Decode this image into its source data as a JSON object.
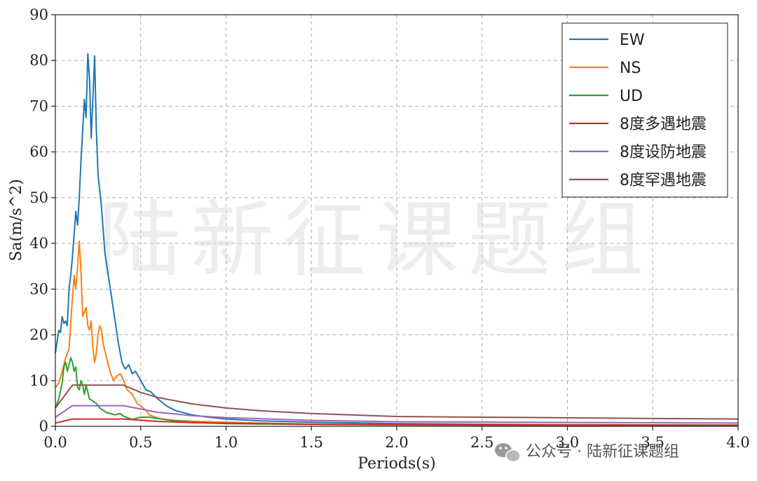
{
  "chart_data": {
    "type": "line",
    "title": "",
    "xlabel": "Periods(s)",
    "ylabel": "Sa(m/s^2)",
    "xlim": [
      0,
      4
    ],
    "ylim": [
      0,
      90
    ],
    "x_ticks": [
      "0.0",
      "0.5",
      "1.0",
      "1.5",
      "2.0",
      "2.5",
      "3.0",
      "3.5",
      "4.0"
    ],
    "y_ticks": [
      "0",
      "10",
      "20",
      "30",
      "40",
      "50",
      "60",
      "70",
      "80",
      "90"
    ],
    "grid": true,
    "legend_position": "top-right",
    "series": [
      {
        "name": "EW",
        "color": "#1f77b4",
        "points": [
          [
            0,
            16
          ],
          [
            0.02,
            21
          ],
          [
            0.03,
            20.5
          ],
          [
            0.04,
            24
          ],
          [
            0.05,
            22.5
          ],
          [
            0.06,
            23
          ],
          [
            0.07,
            22
          ],
          [
            0.08,
            30
          ],
          [
            0.09,
            33
          ],
          [
            0.1,
            37
          ],
          [
            0.11,
            42
          ],
          [
            0.12,
            47
          ],
          [
            0.13,
            44
          ],
          [
            0.14,
            50
          ],
          [
            0.15,
            58
          ],
          [
            0.16,
            65
          ],
          [
            0.17,
            71.5
          ],
          [
            0.18,
            67.5
          ],
          [
            0.19,
            81.5
          ],
          [
            0.2,
            76
          ],
          [
            0.21,
            63
          ],
          [
            0.22,
            72
          ],
          [
            0.23,
            81
          ],
          [
            0.24,
            65
          ],
          [
            0.25,
            55
          ],
          [
            0.27,
            48
          ],
          [
            0.29,
            38
          ],
          [
            0.31,
            33
          ],
          [
            0.33,
            28
          ],
          [
            0.35,
            23
          ],
          [
            0.37,
            18
          ],
          [
            0.39,
            14
          ],
          [
            0.41,
            12.5
          ],
          [
            0.43,
            13.5
          ],
          [
            0.45,
            11.5
          ],
          [
            0.47,
            12
          ],
          [
            0.5,
            10
          ],
          [
            0.53,
            8
          ],
          [
            0.56,
            7.5
          ],
          [
            0.6,
            6
          ],
          [
            0.65,
            4.5
          ],
          [
            0.7,
            3.5
          ],
          [
            0.8,
            2.5
          ],
          [
            0.9,
            2
          ],
          [
            1.0,
            1.6
          ],
          [
            1.2,
            1.2
          ],
          [
            1.5,
            0.9
          ],
          [
            2.0,
            0.6
          ],
          [
            2.5,
            0.45
          ],
          [
            3.0,
            0.35
          ],
          [
            3.5,
            0.3
          ],
          [
            4.0,
            0.25
          ]
        ]
      },
      {
        "name": "NS",
        "color": "#ff7f0e",
        "points": [
          [
            0,
            8.5
          ],
          [
            0.02,
            9.5
          ],
          [
            0.04,
            12
          ],
          [
            0.06,
            15
          ],
          [
            0.08,
            17
          ],
          [
            0.1,
            28
          ],
          [
            0.11,
            33
          ],
          [
            0.12,
            30
          ],
          [
            0.13,
            35
          ],
          [
            0.14,
            40.5
          ],
          [
            0.15,
            34
          ],
          [
            0.16,
            24
          ],
          [
            0.17,
            25
          ],
          [
            0.18,
            26
          ],
          [
            0.19,
            22
          ],
          [
            0.2,
            21
          ],
          [
            0.21,
            23
          ],
          [
            0.22,
            17
          ],
          [
            0.23,
            14
          ],
          [
            0.24,
            16
          ],
          [
            0.25,
            20
          ],
          [
            0.26,
            22
          ],
          [
            0.27,
            21
          ],
          [
            0.28,
            18
          ],
          [
            0.3,
            15
          ],
          [
            0.32,
            12
          ],
          [
            0.34,
            10
          ],
          [
            0.36,
            11
          ],
          [
            0.38,
            11.5
          ],
          [
            0.4,
            10
          ],
          [
            0.42,
            8
          ],
          [
            0.45,
            7
          ],
          [
            0.48,
            5
          ],
          [
            0.5,
            4.5
          ],
          [
            0.53,
            3.5
          ],
          [
            0.55,
            2.5
          ],
          [
            0.6,
            1.8
          ],
          [
            0.65,
            1.5
          ],
          [
            0.7,
            1.3
          ],
          [
            0.8,
            1.1
          ],
          [
            0.9,
            1
          ],
          [
            1.0,
            0.9
          ],
          [
            1.2,
            0.7
          ],
          [
            1.5,
            0.5
          ],
          [
            2.0,
            0.35
          ],
          [
            2.5,
            0.3
          ],
          [
            3.0,
            0.25
          ],
          [
            3.5,
            0.2
          ],
          [
            4.0,
            0.18
          ]
        ]
      },
      {
        "name": "UD",
        "color": "#2ca02c",
        "points": [
          [
            0,
            4
          ],
          [
            0.02,
            6
          ],
          [
            0.04,
            9.5
          ],
          [
            0.05,
            13
          ],
          [
            0.06,
            14
          ],
          [
            0.07,
            12
          ],
          [
            0.08,
            13.5
          ],
          [
            0.09,
            15
          ],
          [
            0.1,
            14
          ],
          [
            0.11,
            12
          ],
          [
            0.12,
            13
          ],
          [
            0.13,
            8.5
          ],
          [
            0.14,
            8
          ],
          [
            0.15,
            10
          ],
          [
            0.16,
            9
          ],
          [
            0.17,
            7
          ],
          [
            0.18,
            9
          ],
          [
            0.2,
            6
          ],
          [
            0.22,
            5.5
          ],
          [
            0.24,
            5
          ],
          [
            0.26,
            4
          ],
          [
            0.28,
            3.5
          ],
          [
            0.3,
            3
          ],
          [
            0.35,
            2.5
          ],
          [
            0.38,
            2.8
          ],
          [
            0.4,
            2.2
          ],
          [
            0.45,
            1.5
          ],
          [
            0.5,
            2
          ],
          [
            0.55,
            2
          ],
          [
            0.6,
            1.7
          ],
          [
            0.7,
            1.2
          ],
          [
            0.8,
            0.9
          ],
          [
            0.9,
            0.7
          ],
          [
            1.0,
            0.6
          ],
          [
            1.2,
            0.5
          ],
          [
            1.5,
            0.4
          ],
          [
            2.0,
            0.3
          ],
          [
            3.0,
            0.2
          ],
          [
            4.0,
            0.15
          ]
        ]
      },
      {
        "name": "8度多遇地震",
        "color": "#d62728",
        "points": [
          [
            0,
            0.72
          ],
          [
            0.1,
            1.6
          ],
          [
            0.4,
            1.6
          ],
          [
            0.6,
            1.08
          ],
          [
            0.8,
            0.82
          ],
          [
            1.0,
            0.67
          ],
          [
            1.5,
            0.46
          ],
          [
            2.0,
            0.36
          ],
          [
            2.5,
            0.32
          ],
          [
            3.0,
            0.29
          ],
          [
            3.5,
            0.27
          ],
          [
            4.0,
            0.25
          ]
        ]
      },
      {
        "name": "8度设防地震",
        "color": "#9467bd",
        "points": [
          [
            0,
            2
          ],
          [
            0.1,
            4.5
          ],
          [
            0.4,
            4.5
          ],
          [
            0.6,
            3.05
          ],
          [
            0.8,
            2.35
          ],
          [
            1.0,
            1.9
          ],
          [
            1.5,
            1.3
          ],
          [
            2.0,
            1.0
          ],
          [
            2.5,
            0.92
          ],
          [
            3.0,
            0.85
          ],
          [
            3.5,
            0.78
          ],
          [
            4.0,
            0.7
          ]
        ]
      },
      {
        "name": "8度罕遇地震",
        "color": "#8c564b",
        "points": [
          [
            0,
            4
          ],
          [
            0.1,
            9
          ],
          [
            0.4,
            9
          ],
          [
            0.5,
            7.4
          ],
          [
            0.6,
            6.3
          ],
          [
            0.8,
            4.9
          ],
          [
            1.0,
            4
          ],
          [
            1.2,
            3.4
          ],
          [
            1.5,
            2.8
          ],
          [
            2.0,
            2.15
          ],
          [
            2.5,
            2.0
          ],
          [
            3.0,
            1.85
          ],
          [
            3.5,
            1.7
          ],
          [
            4.0,
            1.6
          ]
        ]
      }
    ]
  },
  "watermark": {
    "main": "陆新征课题组",
    "footer": "公众号 · 陆新征课题组"
  }
}
